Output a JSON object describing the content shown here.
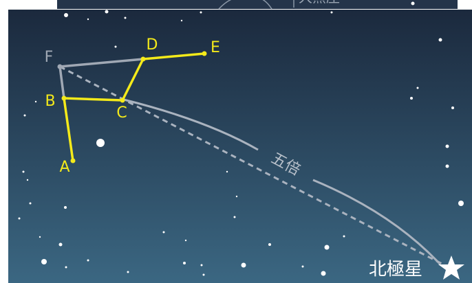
{
  "constellation_box": {
    "label": "大熊座"
  },
  "points": [
    {
      "label": "A"
    },
    {
      "label": "B"
    },
    {
      "label": "C"
    },
    {
      "label": "D"
    },
    {
      "label": "E"
    },
    {
      "label": "F"
    }
  ],
  "ratio_label": "五倍",
  "pole_star": {
    "label": "北極星"
  }
}
